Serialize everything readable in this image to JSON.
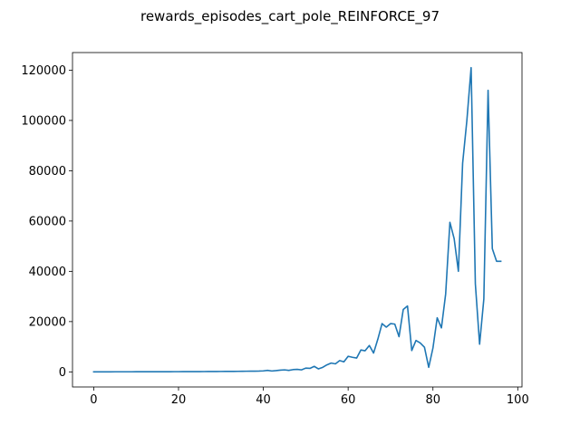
{
  "chart_data": {
    "type": "line",
    "title": "rewards_episodes_cart_pole_REINFORCE_97",
    "xlabel": "",
    "ylabel": "",
    "xlim": [
      -5,
      101
    ],
    "ylim": [
      -6000,
      127000
    ],
    "xticks": [
      0,
      20,
      40,
      60,
      80,
      100
    ],
    "yticks": [
      0,
      20000,
      40000,
      60000,
      80000,
      100000,
      120000
    ],
    "grid": false,
    "line_color": "#1f77b4",
    "series": [
      {
        "x": [
          0,
          1,
          2,
          3,
          4,
          5,
          6,
          7,
          8,
          9,
          10,
          11,
          12,
          13,
          14,
          15,
          16,
          17,
          18,
          19,
          20,
          21,
          22,
          23,
          24,
          25,
          26,
          27,
          28,
          29,
          30,
          31,
          32,
          33,
          34,
          35,
          36,
          37,
          38,
          39,
          40,
          41,
          42,
          43,
          44,
          45,
          46,
          47,
          48,
          49,
          50,
          51,
          52,
          53,
          54,
          55,
          56,
          57,
          58,
          59,
          60,
          61,
          62,
          63,
          64,
          65,
          66,
          67,
          68,
          69,
          70,
          71,
          72,
          73,
          74,
          75,
          76,
          77,
          78,
          79,
          80,
          81,
          82,
          83,
          84,
          85,
          86,
          87,
          88,
          89,
          90,
          91,
          92,
          93,
          94,
          95,
          96
        ],
        "y": [
          20,
          22,
          25,
          28,
          30,
          32,
          35,
          38,
          40,
          42,
          45,
          48,
          50,
          55,
          58,
          60,
          65,
          70,
          75,
          80,
          85,
          90,
          95,
          100,
          110,
          120,
          130,
          140,
          150,
          160,
          170,
          180,
          190,
          200,
          220,
          240,
          260,
          280,
          300,
          330,
          400,
          600,
          350,
          500,
          700,
          800,
          600,
          900,
          1000,
          800,
          1500,
          1400,
          2200,
          1200,
          1800,
          2800,
          3500,
          3200,
          4500,
          4000,
          6200,
          5800,
          5500,
          8700,
          8400,
          10500,
          7500,
          13000,
          19200,
          17800,
          19200,
          19000,
          14000,
          24800,
          26200,
          8500,
          12500,
          11500,
          9800,
          1800,
          9500,
          21500,
          17500,
          31000,
          59500,
          53000,
          40000,
          83000,
          100000,
          121000,
          35000,
          11000,
          29000,
          112000,
          49000,
          44000,
          44000
        ]
      }
    ]
  }
}
